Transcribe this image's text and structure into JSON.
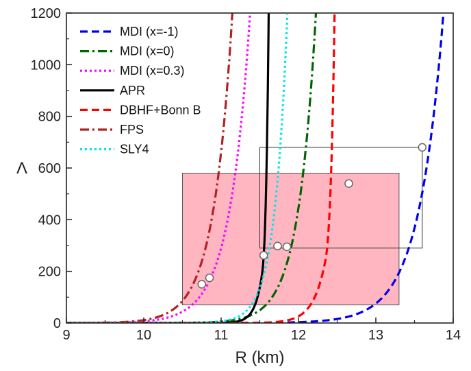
{
  "chart_data": {
    "type": "line",
    "title": "",
    "xlabel": "R (km)",
    "ylabel": "Λ",
    "xlim": [
      9,
      14
    ],
    "ylim": [
      0,
      1200
    ],
    "xticks": [
      9,
      10,
      11,
      12,
      13,
      14
    ],
    "yticks": [
      0,
      200,
      400,
      600,
      800,
      1000,
      1200
    ],
    "grid": false,
    "legend_position": "top-left",
    "series": [
      {
        "name": "MDI (x=-1)",
        "color": "#0000ee",
        "dash": "dash",
        "asymptote": 13.88,
        "decay": 0.3158,
        "knee": 0,
        "markers": [
          [
            13.6,
            680
          ]
        ]
      },
      {
        "name": "MDI (x=0)",
        "color": "#006400",
        "dash": "dashdot",
        "asymptote": 12.23,
        "decay": 0.2278,
        "knee": 0,
        "markers": [
          [
            11.85,
            295
          ]
        ]
      },
      {
        "name": "MDI (x=0.3)",
        "color": "#ff00ff",
        "dash": "dot",
        "asymptote": 11.38,
        "decay": 0.2639,
        "knee": 0,
        "markers": [
          [
            10.85,
            175
          ]
        ]
      },
      {
        "name": "APR",
        "color": "#000000",
        "dash": "solid",
        "asymptote": 11.7,
        "decay": 0.0917,
        "knee": 11.53,
        "markers": [
          [
            11.55,
            262
          ]
        ]
      },
      {
        "name": "DBHF+Bonn B",
        "color": "#ff0000",
        "dash": "dash",
        "asymptote": 12.6,
        "decay": 0.1556,
        "knee": 12.35,
        "markers": [
          [
            12.65,
            540
          ]
        ]
      },
      {
        "name": "FPS",
        "color": "#b22222",
        "dash": "dashdot",
        "asymptote": 11.15,
        "decay": 0.2444,
        "knee": 0,
        "markers": [
          [
            10.75,
            150
          ]
        ]
      },
      {
        "name": "SLY4",
        "color": "#00e5ee",
        "dash": "dot",
        "asymptote": 11.86,
        "decay": 0.1639,
        "knee": 0,
        "markers": [
          [
            11.73,
            298
          ]
        ]
      }
    ],
    "regions": [
      {
        "name": "shaded-constraint-box",
        "x": [
          10.5,
          13.3
        ],
        "y": [
          70,
          580
        ],
        "fill": "#ffb6c1",
        "stroke": "#555555"
      },
      {
        "name": "outlined-constraint-box",
        "x": [
          11.5,
          13.6
        ],
        "y": [
          290,
          680
        ],
        "fill": "none",
        "stroke": "#333333"
      }
    ]
  }
}
